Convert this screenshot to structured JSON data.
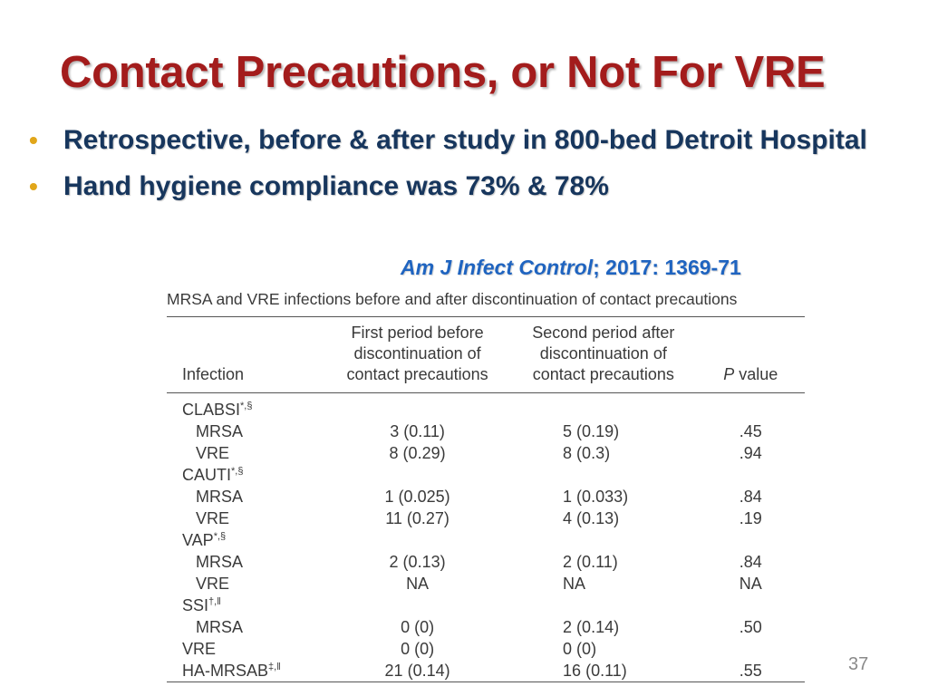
{
  "slide": {
    "title": "Contact Precautions, or Not For VRE",
    "bullets": [
      "Retrospective, before & after study in 800-bed Detroit Hospital",
      "Hand hygiene compliance was 73% & 78%"
    ],
    "citation": {
      "journal": "Am J Infect Control",
      "details": "; 2017: 1369-71"
    },
    "page_number": "37",
    "colors": {
      "title": "#a31c1c",
      "bullet_text": "#17365d",
      "bullet_marker": "#e1a61a",
      "citation": "#1f64c0"
    }
  },
  "table": {
    "caption": "MRSA and VRE infections before and after discontinuation of contact precautions",
    "headers": {
      "infection": "Infection",
      "first_period": [
        "First period before",
        "discontinuation of",
        "contact precautions"
      ],
      "second_period": [
        "Second period after",
        "discontinuation of",
        "contact precautions"
      ],
      "p_value_italic": "P",
      "p_value_rest": " value"
    },
    "rows": [
      {
        "name": "CLABSI",
        "sup": "*,§",
        "first": "",
        "second": "",
        "p": ""
      },
      {
        "name": "MRSA",
        "sup": "",
        "first": "3 (0.11)",
        "second": "5 (0.19)",
        "p": ".45"
      },
      {
        "name": "VRE",
        "sup": "",
        "first": "8 (0.29)",
        "second": "8 (0.3)",
        "p": ".94"
      },
      {
        "name": "CAUTI",
        "sup": "*,§",
        "first": "",
        "second": "",
        "p": ""
      },
      {
        "name": "MRSA",
        "sup": "",
        "first": "1 (0.025)",
        "second": "1 (0.033)",
        "p": ".84"
      },
      {
        "name": "VRE",
        "sup": "",
        "first": "11 (0.27)",
        "second": "4 (0.13)",
        "p": ".19"
      },
      {
        "name": "VAP",
        "sup": "*,§",
        "first": "",
        "second": "",
        "p": ""
      },
      {
        "name": "MRSA",
        "sup": "",
        "first": "2 (0.13)",
        "second": "2 (0.11)",
        "p": ".84"
      },
      {
        "name": "VRE",
        "sup": "",
        "first": "NA",
        "second": "NA",
        "p": "NA"
      },
      {
        "name": "SSI",
        "sup": "†,‖",
        "first": "",
        "second": "",
        "p": ""
      },
      {
        "name": "MRSA",
        "sup": "",
        "first": "0 (0)",
        "second": "2 (0.14)",
        "p": ".50"
      },
      {
        "name": "VRE",
        "sup": "",
        "first": "0 (0)",
        "second": "0 (0)",
        "p": ""
      },
      {
        "name": "HA-MRSAB",
        "sup": "‡,‖",
        "first": "21 (0.14)",
        "second": "16 (0.11)",
        "p": ".55"
      }
    ]
  }
}
